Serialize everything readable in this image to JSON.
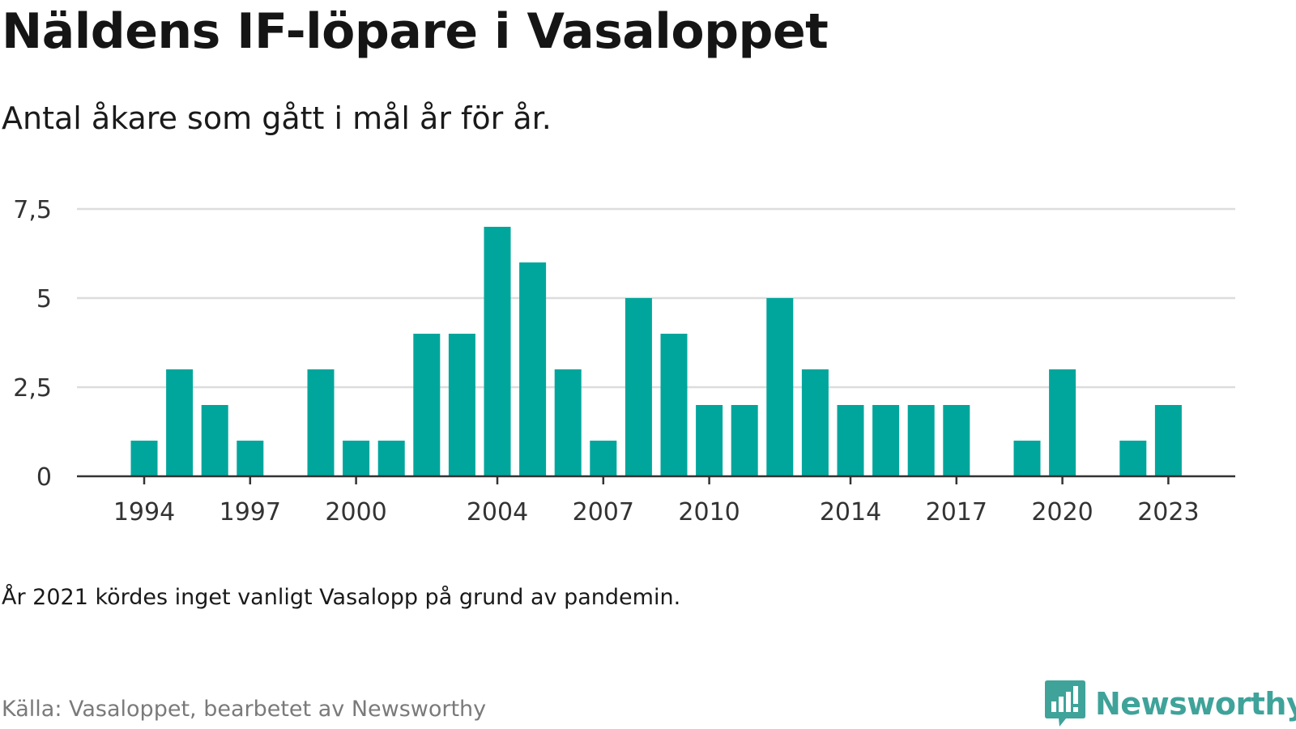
{
  "chart_data": {
    "type": "bar",
    "title": "Näldens IF-löpare i Vasaloppet",
    "subtitle": "Antal åkare som gått i mål år för år.",
    "xlabel": "",
    "ylabel": "",
    "categories": [
      "1994",
      "1995",
      "1996",
      "1997",
      "1998",
      "1999",
      "2000",
      "2001",
      "2002",
      "2003",
      "2004",
      "2005",
      "2006",
      "2007",
      "2008",
      "2009",
      "2010",
      "2011",
      "2012",
      "2013",
      "2014",
      "2015",
      "2016",
      "2017",
      "2018",
      "2019",
      "2020",
      "2021",
      "2022",
      "2023"
    ],
    "values": [
      1,
      3,
      2,
      1,
      0,
      3,
      1,
      1,
      4,
      4,
      7,
      6,
      3,
      1,
      5,
      4,
      2,
      2,
      5,
      3,
      2,
      2,
      2,
      2,
      0,
      1,
      3,
      0,
      1,
      2
    ],
    "x_tick_labels": [
      "1994",
      "1997",
      "2000",
      "2004",
      "2007",
      "2010",
      "2014",
      "2017",
      "2020",
      "2023"
    ],
    "y_ticks": [
      0,
      2.5,
      5,
      7.5
    ],
    "y_tick_labels": [
      "0",
      "2,5",
      "5",
      "7,5"
    ],
    "ylim": [
      0,
      7.5
    ],
    "grid": true,
    "bar_color": "#00a69c",
    "note": "År 2021 kördes inget vanligt Vasalopp på grund av pandemin.",
    "source": "Källa: Vasaloppet, bearbetet av Newsworthy"
  },
  "brand": {
    "name": "Newsworthy",
    "icon": "newsworthy-logo-icon",
    "color": "#3fa39a"
  }
}
